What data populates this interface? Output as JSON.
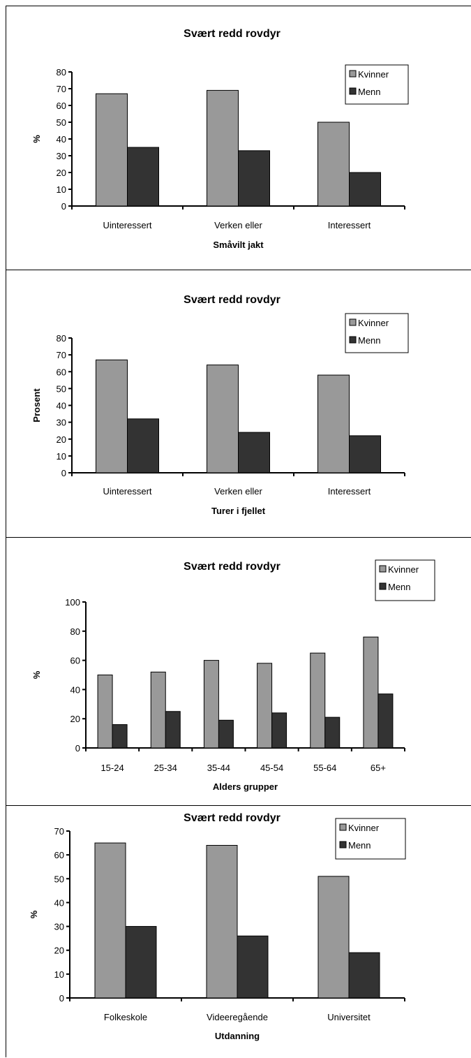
{
  "chart_data": [
    {
      "type": "bar",
      "title": "Svært redd rovdyr",
      "xlabel": "Småvilt jakt",
      "ylabel": "%",
      "ylim": [
        0,
        80
      ],
      "yticks": [
        0,
        10,
        20,
        30,
        40,
        50,
        60,
        70,
        80
      ],
      "categories": [
        "Uinteressert",
        "Verken eller",
        "Interessert"
      ],
      "series": [
        {
          "name": "Kvinner",
          "values": [
            67,
            69,
            50
          ]
        },
        {
          "name": "Menn",
          "values": [
            35,
            33,
            20
          ]
        }
      ],
      "legend": "top-right",
      "grid": false
    },
    {
      "type": "bar",
      "title": "Svært redd rovdyr",
      "xlabel": "Turer i fjellet",
      "ylabel": "Prosent",
      "ylim": [
        0,
        80
      ],
      "yticks": [
        0,
        10,
        20,
        30,
        40,
        50,
        60,
        70,
        80
      ],
      "categories": [
        "Uinteressert",
        "Verken eller",
        "Interessert"
      ],
      "series": [
        {
          "name": "Kvinner",
          "values": [
            67,
            64,
            58
          ]
        },
        {
          "name": "Menn",
          "values": [
            32,
            24,
            22
          ]
        }
      ],
      "legend": "top-right",
      "grid": false
    },
    {
      "type": "bar",
      "title": "Svært redd rovdyr",
      "xlabel": "Alders grupper",
      "ylabel": "%",
      "ylim": [
        0,
        100
      ],
      "yticks": [
        0,
        20,
        40,
        60,
        80,
        100
      ],
      "categories": [
        "15-24",
        "25-34",
        "35-44",
        "45-54",
        "55-64",
        "65+"
      ],
      "series": [
        {
          "name": "Kvinner",
          "values": [
            50,
            52,
            60,
            58,
            65,
            76
          ]
        },
        {
          "name": "Menn",
          "values": [
            16,
            25,
            19,
            24,
            21,
            37
          ]
        }
      ],
      "legend": "top-right",
      "grid": false
    },
    {
      "type": "bar",
      "title": "Svært redd rovdyr",
      "xlabel": "Utdanning",
      "ylabel": "%",
      "ylim": [
        0,
        70
      ],
      "yticks": [
        0,
        10,
        20,
        30,
        40,
        50,
        60,
        70
      ],
      "categories": [
        "Folkeskole",
        "Videeregående",
        "Universitet"
      ],
      "series": [
        {
          "name": "Kvinner",
          "values": [
            65,
            64,
            51
          ]
        },
        {
          "name": "Menn",
          "values": [
            30,
            26,
            19
          ]
        }
      ],
      "legend": "top-right",
      "grid": false
    }
  ],
  "colors": {
    "Kvinner": "#999999",
    "Menn": "#333333",
    "axis": "#000000",
    "background": "#ffffff"
  }
}
